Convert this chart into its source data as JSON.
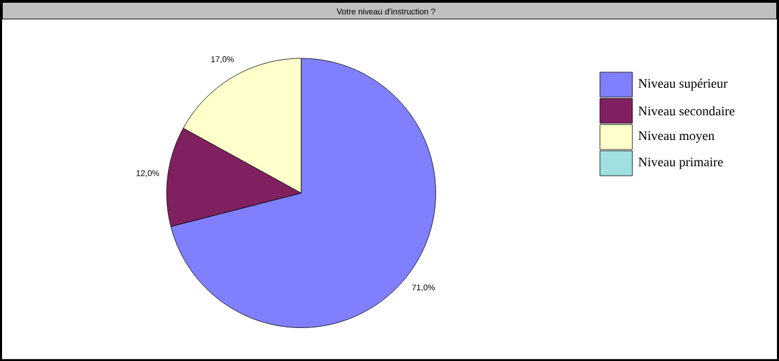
{
  "chart_data": {
    "type": "pie",
    "title": "Votre niveau d'instruction ?",
    "categories": [
      "Niveau supérieur",
      "Niveau secondaire",
      "Niveau moyen",
      "Niveau primaire"
    ],
    "values": [
      71,
      12,
      17,
      0
    ],
    "colors": [
      "#8080ff",
      "#802060",
      "#ffffcc",
      "#a0e0e0"
    ],
    "value_labels": [
      "71,0%",
      "12,0%",
      "17,0%",
      null
    ],
    "legend": "right"
  }
}
